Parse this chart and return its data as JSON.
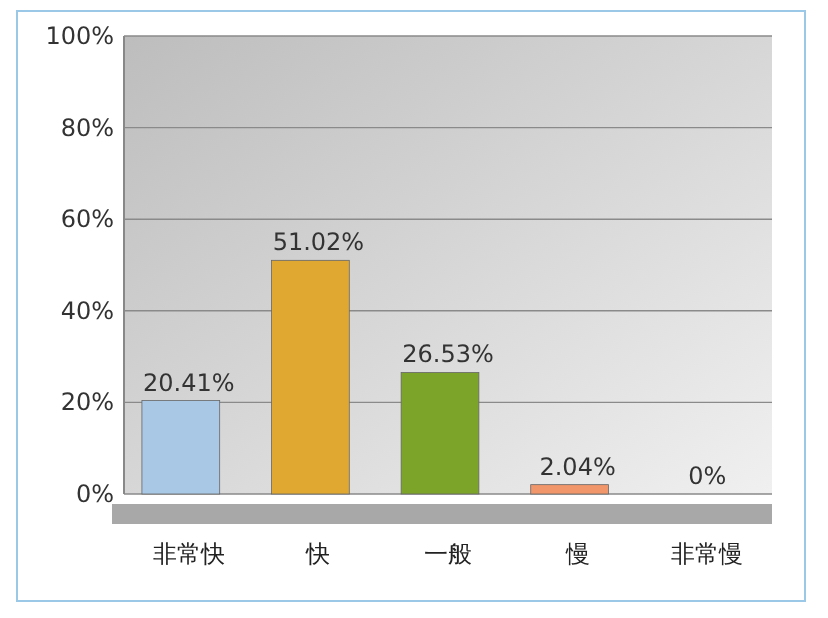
{
  "chart_data": {
    "type": "bar",
    "categories": [
      "非常快",
      "快",
      "一般",
      "慢",
      "非常慢"
    ],
    "values": [
      20.41,
      51.02,
      26.53,
      2.04,
      0
    ],
    "value_labels": [
      "20.41%",
      "51.02%",
      "26.53%",
      "2.04%",
      "0%"
    ],
    "colors": [
      "#a9c8e6",
      "#e0a830",
      "#7ba428",
      "#f0966a",
      "#3aa6a6"
    ],
    "ylim": [
      0,
      100
    ],
    "yticks": [
      {
        "value": 0,
        "label": "0%"
      },
      {
        "value": 20,
        "label": "20%"
      },
      {
        "value": 40,
        "label": "40%"
      },
      {
        "value": 60,
        "label": "60%"
      },
      {
        "value": 80,
        "label": "80%"
      },
      {
        "value": 100,
        "label": "100%"
      }
    ],
    "grid": "y"
  }
}
